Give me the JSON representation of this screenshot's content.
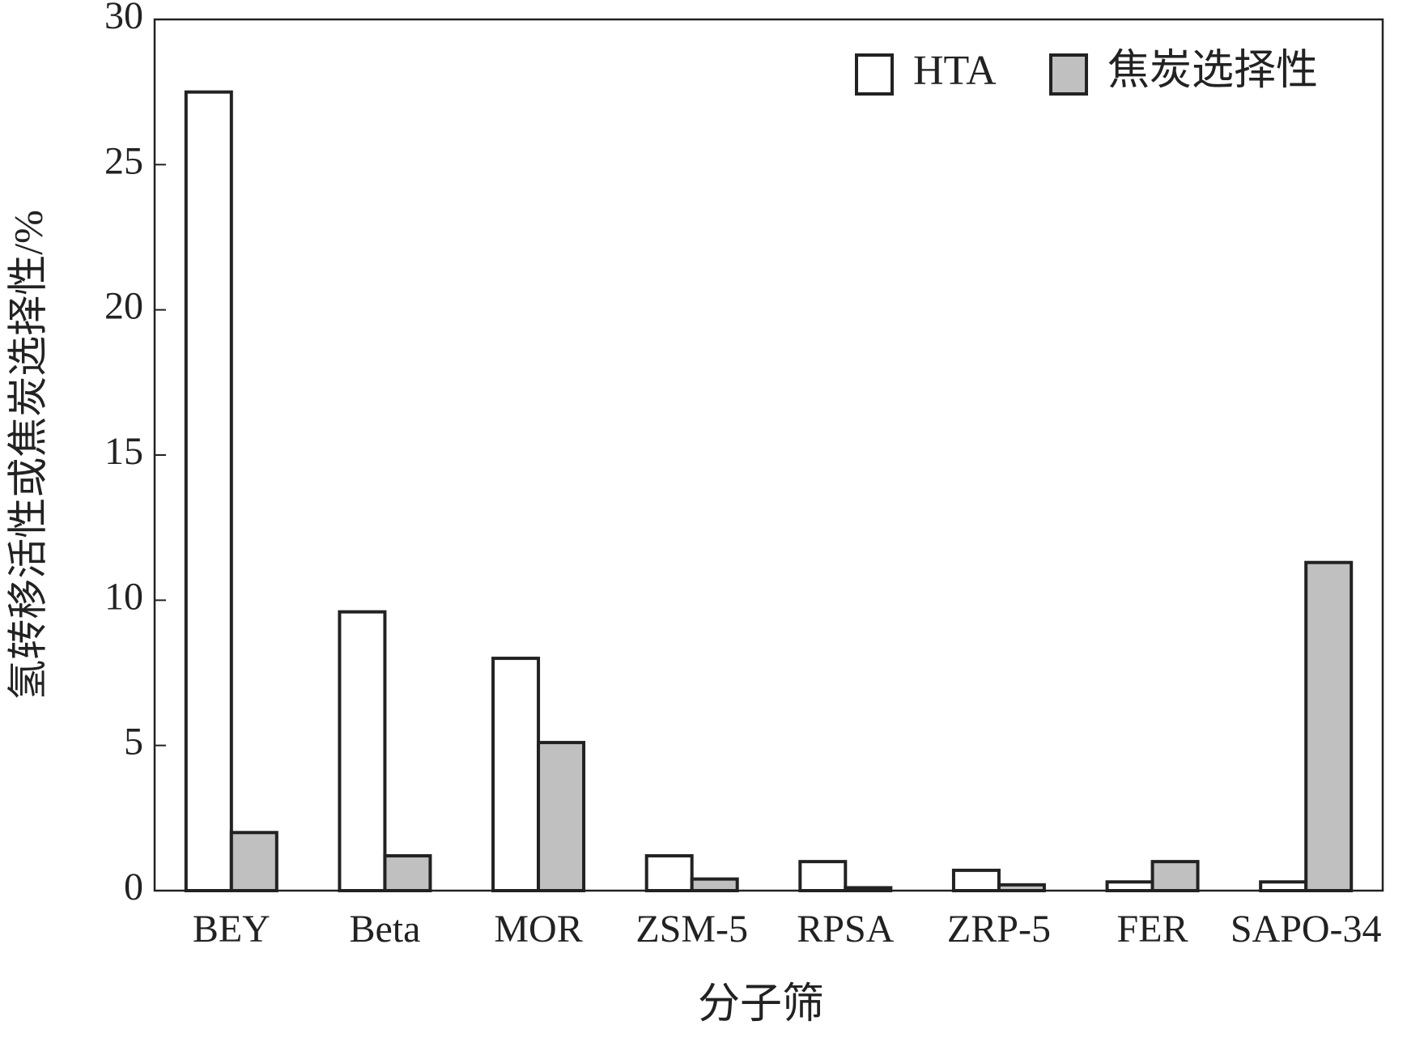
{
  "chart_data": {
    "type": "bar",
    "y_label": "氢转移活性或焦炭选择性/%",
    "x_label": "分子筛",
    "categories": [
      "BEY",
      "Beta",
      "MOR",
      "ZSM-5",
      "RPSA",
      "ZRP-5",
      "FER",
      "SAPO-34"
    ],
    "series": [
      {
        "name": "HTA",
        "color": "#ffffff",
        "values": [
          27.5,
          9.6,
          8.0,
          1.2,
          1.0,
          0.7,
          0.3,
          0.3
        ]
      },
      {
        "name": "焦炭选择性",
        "color": "#c0c0c0",
        "values": [
          2.0,
          1.2,
          5.1,
          0.4,
          0.1,
          0.2,
          1.0,
          11.3
        ]
      }
    ],
    "ylim": [
      0,
      30
    ],
    "yticks": [
      0,
      5,
      10,
      15,
      20,
      25,
      30
    ],
    "legend": "top-right"
  }
}
